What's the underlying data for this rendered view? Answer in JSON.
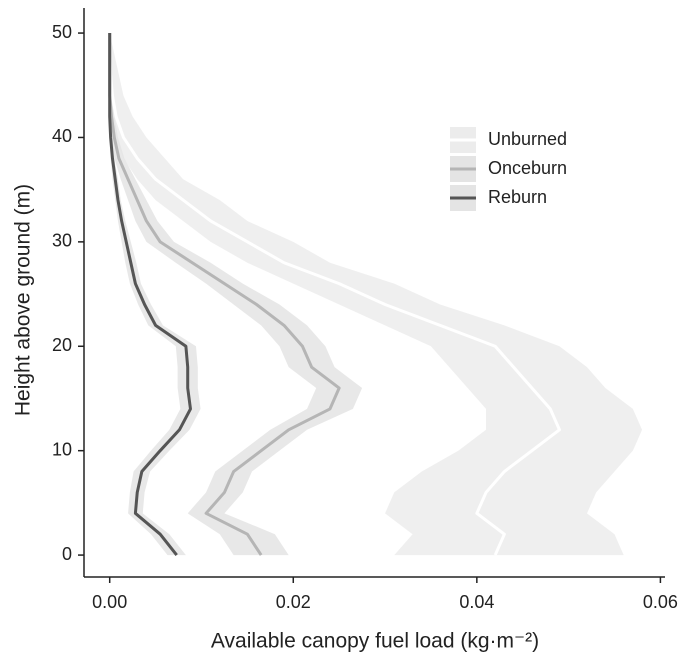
{
  "chart_data": {
    "type": "profile",
    "xlabel": "Available canopy fuel load (kg·m⁻²)",
    "ylabel": "Height above ground (m)",
    "xlim": [
      -0.0028,
      0.0605
    ],
    "ylim": [
      -2.1,
      52.4
    ],
    "xticks": [
      {
        "value": 0,
        "label": "0.00"
      },
      0.02,
      0.04,
      0.06
    ],
    "yticks": [
      0,
      10,
      20,
      30,
      40,
      50
    ],
    "y": [
      0,
      2,
      4,
      6,
      8,
      10,
      12,
      14,
      16,
      18,
      20,
      22,
      24,
      26,
      28,
      30,
      32,
      34,
      36,
      38,
      40,
      42,
      44,
      46,
      48,
      50
    ],
    "legend": "top-right",
    "series": [
      {
        "name": "Unburned",
        "color": "#ffffff",
        "band_color": "#ececec",
        "values": [
          0.042,
          0.043,
          0.04,
          0.041,
          0.043,
          0.046,
          0.049,
          0.048,
          0.046,
          0.044,
          0.042,
          0.036,
          0.03,
          0.025,
          0.019,
          0.015,
          0.011,
          0.008,
          0.005,
          0.003,
          0.0015,
          0.0007,
          0.0003,
          0.0001,
          0,
          0
        ],
        "lower": [
          0.031,
          0.033,
          0.03,
          0.031,
          0.034,
          0.038,
          0.041,
          0.041,
          0.039,
          0.037,
          0.035,
          0.03,
          0.025,
          0.02,
          0.015,
          0.011,
          0.008,
          0.005,
          0.003,
          0.0015,
          0.0005,
          0.0001,
          0,
          0,
          0,
          0
        ],
        "upper": [
          0.056,
          0.055,
          0.052,
          0.053,
          0.055,
          0.057,
          0.058,
          0.057,
          0.054,
          0.052,
          0.049,
          0.043,
          0.036,
          0.031,
          0.024,
          0.02,
          0.015,
          0.012,
          0.008,
          0.006,
          0.004,
          0.0025,
          0.0015,
          0.001,
          0.0005,
          0
        ]
      },
      {
        "name": "Onceburn",
        "color": "#b5b5b5",
        "band_color": "#e4e4e4",
        "values": [
          0.0165,
          0.015,
          0.0105,
          0.0125,
          0.0135,
          0.0165,
          0.0195,
          0.024,
          0.025,
          0.022,
          0.021,
          0.019,
          0.016,
          0.0125,
          0.009,
          0.0055,
          0.004,
          0.003,
          0.002,
          0.001,
          0.0005,
          0.0002,
          0,
          0,
          0,
          0
        ],
        "lower": [
          0.0135,
          0.012,
          0.0085,
          0.0105,
          0.0115,
          0.0145,
          0.0175,
          0.0215,
          0.0225,
          0.0195,
          0.0185,
          0.0165,
          0.0135,
          0.0105,
          0.0072,
          0.004,
          0.0028,
          0.002,
          0.0012,
          0.0005,
          0.0002,
          0,
          0,
          0,
          0,
          0
        ],
        "upper": [
          0.0195,
          0.018,
          0.0125,
          0.0145,
          0.0155,
          0.0185,
          0.0215,
          0.0265,
          0.0275,
          0.0245,
          0.0235,
          0.0215,
          0.0185,
          0.0145,
          0.011,
          0.007,
          0.0052,
          0.004,
          0.0028,
          0.0016,
          0.0009,
          0.0005,
          0.0002,
          0,
          0,
          0
        ]
      },
      {
        "name": "Reburn",
        "color": "#555555",
        "band_color": "#e4e4e4",
        "values": [
          0.0073,
          0.0055,
          0.0028,
          0.003,
          0.0035,
          0.0055,
          0.0076,
          0.0088,
          0.0085,
          0.0085,
          0.0083,
          0.005,
          0.0038,
          0.0028,
          0.0023,
          0.0018,
          0.0013,
          0.0009,
          0.0006,
          0.0003,
          0.0001,
          0,
          0,
          0,
          0,
          0
        ],
        "lower": [
          0.0063,
          0.0045,
          0.002,
          0.0022,
          0.0026,
          0.0045,
          0.0065,
          0.0077,
          0.0074,
          0.0074,
          0.0072,
          0.0042,
          0.0031,
          0.0022,
          0.0017,
          0.0013,
          0.0009,
          0.0006,
          0.0003,
          0.0001,
          0,
          0,
          0,
          0,
          0,
          0
        ],
        "upper": [
          0.0083,
          0.0065,
          0.0036,
          0.0038,
          0.0044,
          0.0065,
          0.0087,
          0.0099,
          0.0096,
          0.0096,
          0.0094,
          0.0058,
          0.0045,
          0.0034,
          0.0029,
          0.0023,
          0.0017,
          0.0012,
          0.0009,
          0.0005,
          0.0002,
          0.0001,
          0,
          0,
          0,
          0
        ]
      }
    ]
  }
}
